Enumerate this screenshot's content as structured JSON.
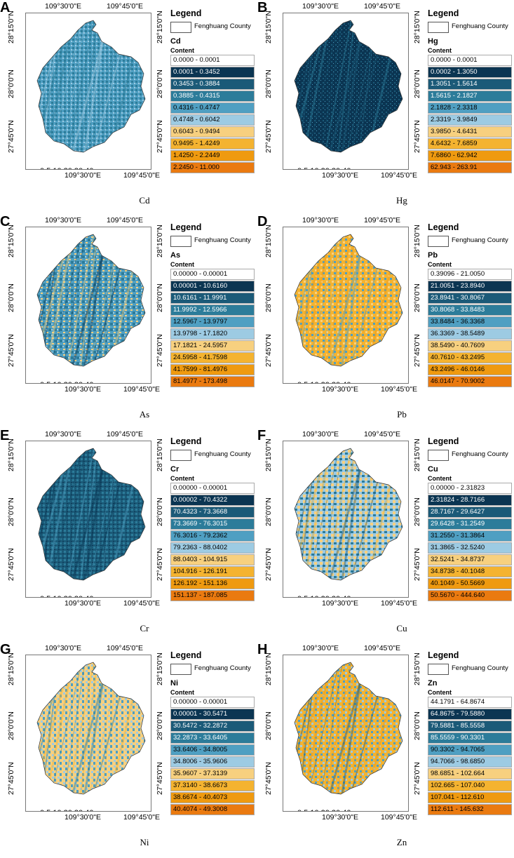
{
  "coords": {
    "top_left": "109°30'0\"E",
    "top_right": "109°45'0\"E",
    "bottom_left": "109°30'0\"E",
    "bottom_right": "109°45'0\"E",
    "lat_top": "28°15'0\"N",
    "lat_mid": "28°0'0\"N",
    "lat_bottom": "27°45'0\"N"
  },
  "scale": {
    "ticks": "0  5  10       20        30       40",
    "unit": "km"
  },
  "north_label": "N",
  "legend_title": "Legend",
  "county_label": "Fenghuang County",
  "content_label": "Content",
  "colors": [
    "#ffffff",
    "#0b3552",
    "#1b5a78",
    "#2c7c9a",
    "#4f9fc2",
    "#9dcbe3",
    "#f7d07f",
    "#f4b330",
    "#ef9a10",
    "#ea7a10"
  ],
  "panels": [
    {
      "letter": "A",
      "element": "Cd",
      "caption": "Cd",
      "style": "cd",
      "ranges": [
        "0.0000 - 0.0001",
        "0.0001 - 0.3452",
        "0.3453 - 0.3884",
        "0.3885 - 0.4315",
        "0.4316 - 0.4747",
        "0.4748 - 0.6042",
        "0.6043 - 0.9494",
        "0.9495 - 1.4249",
        "1.4250 - 2.2449",
        "2.2450 - 11.000"
      ]
    },
    {
      "letter": "B",
      "element": "Hg",
      "caption": "Hg",
      "style": "hg",
      "ranges": [
        "0.0000 - 0.0001",
        "0.0002 - 1.3050",
        "1.3051 - 1.5614",
        "1.5615 - 2.1827",
        "2.1828 - 2.3318",
        "2.3319 - 3.9849",
        "3.9850 - 4.6431",
        "4.6432 - 7.6859",
        "7.6860 - 62.942",
        "62.943 - 263.91"
      ]
    },
    {
      "letter": "C",
      "element": "As",
      "caption": "As",
      "style": "as",
      "ranges": [
        "0.00000 - 0.00001",
        "0.00001 - 10.6160",
        "10.6161 - 11.9991",
        "11.9992 - 12.5966",
        "12.5967 - 13.9797",
        "13.9798 - 17.1820",
        "17.1821 - 24.5957",
        "24.5958 - 41.7598",
        "41.7599 - 81.4976",
        "81.4977 - 173.498"
      ]
    },
    {
      "letter": "D",
      "element": "Pb",
      "caption": "Pb",
      "style": "pb",
      "ranges": [
        "0.39096 - 21.0050",
        "21.0051 - 23.8940",
        "23.8941 - 30.8067",
        "30.8068 - 33.8483",
        "33.8484 - 36.3368",
        "36.3369 - 38.5489",
        "38.5490 - 40.7609",
        "40.7610 - 43.2495",
        "43.2496 - 46.0146",
        "46.0147 - 70.9002"
      ]
    },
    {
      "letter": "E",
      "element": "Cr",
      "caption": "Cr",
      "style": "cr",
      "ranges": [
        "0.00000 - 0.00001",
        "0.00002 - 70.4322",
        "70.4323 - 73.3668",
        "73.3669 - 76.3015",
        "76.3016 - 79.2362",
        "79.2363 - 88.0402",
        "88.0403 - 104.915",
        "104.916 - 126.191",
        "126.192 - 151.136",
        "151.137 - 187.085"
      ]
    },
    {
      "letter": "F",
      "element": "Cu",
      "caption": "Cu",
      "style": "cu",
      "ranges": [
        "0.00000 - 2.31823",
        "2.31824 - 28.7166",
        "28.7167 - 29.6427",
        "29.6428 - 31.2549",
        "31.2550 - 31.3864",
        "31.3865 - 32.5240",
        "32.5241 - 34.8737",
        "34.8738 - 40.1048",
        "40.1049 - 50.5669",
        "50.5670 - 444.640"
      ]
    },
    {
      "letter": "G",
      "element": "Ni",
      "caption": "Ni",
      "style": "ni",
      "ranges": [
        "0.00000 - 0.00001",
        "0.00001 - 30.5471",
        "30.5472 - 32.2872",
        "32.2873 - 33.6405",
        "33.6406 - 34.8005",
        "34.8006 - 35.9606",
        "35.9607 - 37.3139",
        "37.3140 - 38.6673",
        "38.6674 - 40.4073",
        "40.4074 - 49.3008"
      ]
    },
    {
      "letter": "H",
      "element": "Zn",
      "caption": "Zn",
      "style": "zn",
      "ranges": [
        "44.1791 - 64.8674",
        "64.8675 - 79.5880",
        "79.5881 - 85.5558",
        "85.5559 - 90.3301",
        "90.3302 - 94.7065",
        "94.7066 - 98.6850",
        "98.6851 - 102.664",
        "102.665 - 107.040",
        "107.041 - 112.610",
        "112.611 - 145.632"
      ]
    }
  ]
}
